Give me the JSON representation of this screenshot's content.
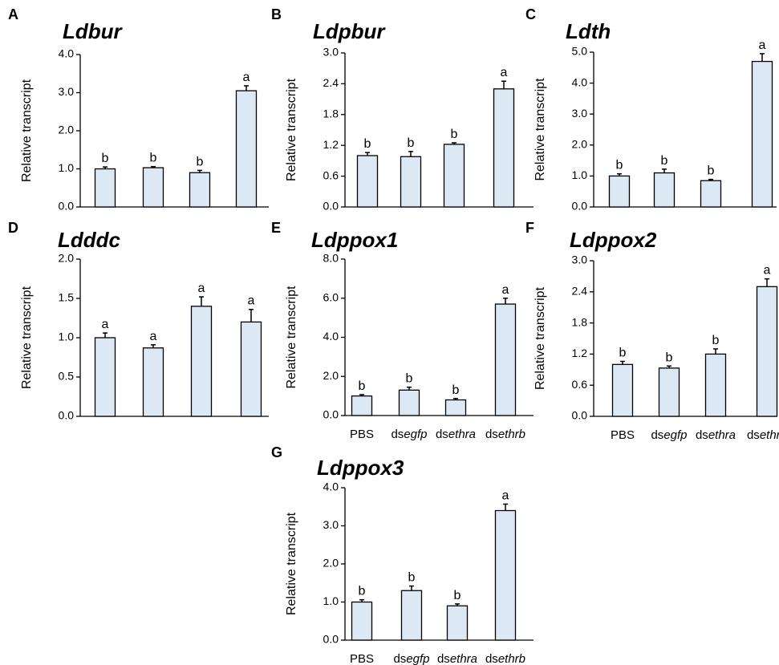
{
  "chart_data": [
    {
      "type": "bar",
      "panel": "A",
      "title": "Ldbur",
      "ylabel": "Relative transcript",
      "categories": [
        null,
        null,
        null,
        null
      ],
      "values": [
        1.0,
        1.03,
        0.9,
        3.05
      ],
      "errors": [
        0.05,
        0.03,
        0.06,
        0.13
      ],
      "letters": [
        "b",
        "b",
        "b",
        "a"
      ],
      "color": "#dce9f5",
      "ylim": [
        0,
        4
      ],
      "yticks": [
        {
          "value": 0,
          "label": "0.0"
        },
        {
          "value": 1,
          "label": "1.0"
        },
        {
          "value": 2,
          "label": "2.0"
        },
        {
          "value": 3,
          "label": "3.0"
        },
        {
          "value": 4,
          "label": "4.0"
        }
      ]
    },
    {
      "type": "bar",
      "panel": "B",
      "title": "Ldpbur",
      "ylabel": "Relative transcript",
      "categories": [
        null,
        null,
        null,
        null
      ],
      "values": [
        1.0,
        0.98,
        1.22,
        2.3
      ],
      "errors": [
        0.06,
        0.1,
        0.03,
        0.15
      ],
      "letters": [
        "b",
        "b",
        "b",
        "a"
      ],
      "color": "#dce9f5",
      "ylim": [
        0,
        3
      ],
      "yticks": [
        {
          "value": 0,
          "label": "0.0"
        },
        0.6,
        1.2,
        1.8,
        2.4,
        {
          "value": 3,
          "label": "3.0"
        }
      ]
    },
    {
      "type": "bar",
      "panel": "C",
      "title": "Ldth",
      "ylabel": "Relative transcript",
      "categories": [
        null,
        null,
        null,
        null
      ],
      "values": [
        1.0,
        1.1,
        0.85,
        4.7
      ],
      "errors": [
        0.07,
        0.12,
        0.04,
        0.25
      ],
      "letters": [
        "b",
        "b",
        "b",
        "a"
      ],
      "color": "#dce9f5",
      "ylim": [
        0,
        5
      ],
      "yticks": [
        {
          "value": 0,
          "label": "0.0"
        },
        {
          "value": 1,
          "label": "1.0"
        },
        {
          "value": 2,
          "label": "2.0"
        },
        {
          "value": 3,
          "label": "3.0"
        },
        {
          "value": 4,
          "label": "4.0"
        },
        {
          "value": 5,
          "label": "5.0"
        }
      ]
    },
    {
      "type": "bar",
      "panel": "D",
      "title": "Ldddc",
      "ylabel": "Relative transcript",
      "categories": [
        null,
        null,
        null,
        null
      ],
      "values": [
        1.0,
        0.87,
        1.4,
        1.2
      ],
      "errors": [
        0.06,
        0.04,
        0.12,
        0.16
      ],
      "letters": [
        "a",
        "a",
        "a",
        "a"
      ],
      "color": "#dce9f5",
      "ylim": [
        0,
        2
      ],
      "yticks": [
        {
          "value": 0,
          "label": "0.0"
        },
        0.5,
        {
          "value": 1,
          "label": "1.0"
        },
        1.5,
        {
          "value": 2,
          "label": "2.0"
        }
      ]
    },
    {
      "type": "bar",
      "panel": "E",
      "title": "Ldppox1",
      "ylabel": "Relative transcript",
      "categories": [
        "PBS",
        "dsegfp",
        "dsethra",
        "dsethrb"
      ],
      "values": [
        1.0,
        1.3,
        0.8,
        5.7
      ],
      "errors": [
        0.07,
        0.15,
        0.07,
        0.3
      ],
      "letters": [
        "b",
        "b",
        "b",
        "a"
      ],
      "color": "#dce9f5",
      "ylim": [
        0,
        8
      ],
      "yticks": [
        {
          "value": 0,
          "label": "0.0"
        },
        {
          "value": 2,
          "label": "2.0"
        },
        {
          "value": 4,
          "label": "4.0"
        },
        {
          "value": 6,
          "label": "6.0"
        },
        {
          "value": 8,
          "label": "8.0"
        }
      ]
    },
    {
      "type": "bar",
      "panel": "F",
      "title": "Ldppox2",
      "ylabel": "Relative transcript",
      "categories": [
        "PBS",
        "dsegfp",
        "dsethra",
        "dsethrb"
      ],
      "values": [
        1.0,
        0.93,
        1.2,
        2.5
      ],
      "errors": [
        0.06,
        0.04,
        0.1,
        0.15
      ],
      "letters": [
        "b",
        "b",
        "b",
        "a"
      ],
      "color": "#dce9f5",
      "ylim": [
        0,
        3
      ],
      "yticks": [
        {
          "value": 0,
          "label": "0.0"
        },
        0.6,
        1.2,
        1.8,
        2.4,
        {
          "value": 3,
          "label": "3.0"
        }
      ]
    },
    {
      "type": "bar",
      "panel": "G",
      "title": "Ldppox3",
      "ylabel": "Relative transcript",
      "categories": [
        "PBS",
        "dsegfp",
        "dsethra",
        "dsethrb"
      ],
      "values": [
        1.0,
        1.3,
        0.9,
        3.4
      ],
      "errors": [
        0.06,
        0.12,
        0.05,
        0.17
      ],
      "letters": [
        "b",
        "b",
        "b",
        "a"
      ],
      "color": "#dce9f5",
      "ylim": [
        0,
        4
      ],
      "yticks": [
        {
          "value": 0,
          "label": "0.0"
        },
        {
          "value": 1,
          "label": "1.0"
        },
        {
          "value": 2,
          "label": "2.0"
        },
        {
          "value": 3,
          "label": "3.0"
        },
        {
          "value": 4,
          "label": "4.0"
        }
      ]
    }
  ]
}
